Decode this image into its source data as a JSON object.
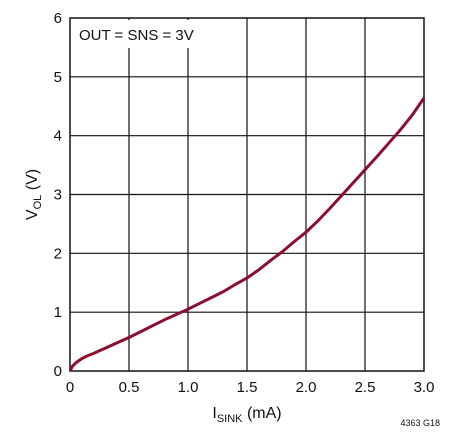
{
  "chart_data": {
    "type": "line",
    "title": "",
    "xlabel_main": "I",
    "xlabel_sub": "SINK",
    "xlabel_unit": " (mA)",
    "ylabel_main": "V",
    "ylabel_sub": "OL",
    "ylabel_unit": " (V)",
    "xlim": [
      0,
      3
    ],
    "ylim": [
      0,
      6
    ],
    "x_ticks": [
      "0",
      "0.5",
      "1.0",
      "1.5",
      "2.0",
      "2.5",
      "3.0"
    ],
    "y_ticks": [
      "0",
      "1",
      "2",
      "3",
      "4",
      "5",
      "6"
    ],
    "grid": true,
    "annotation": "OUT = SNS = 3V",
    "figure_id": "4363 G18",
    "line_color": "#8a0e2e",
    "series": [
      {
        "x": [
          0,
          0.02,
          0.05,
          0.1,
          0.15,
          0.2,
          0.3,
          0.4,
          0.5,
          0.6,
          0.7,
          0.8,
          0.9,
          1.0,
          1.1,
          1.2,
          1.3,
          1.4,
          1.5,
          1.6,
          1.7,
          1.8,
          1.9,
          2.0,
          2.1,
          2.2,
          2.3,
          2.4,
          2.5,
          2.6,
          2.7,
          2.8,
          2.9,
          3.0
        ],
        "y": [
          0,
          0.08,
          0.14,
          0.21,
          0.26,
          0.3,
          0.39,
          0.48,
          0.57,
          0.67,
          0.77,
          0.87,
          0.96,
          1.05,
          1.15,
          1.25,
          1.35,
          1.47,
          1.58,
          1.72,
          1.88,
          2.03,
          2.2,
          2.36,
          2.55,
          2.76,
          2.98,
          3.2,
          3.42,
          3.64,
          3.87,
          4.1,
          4.35,
          4.64
        ]
      }
    ]
  }
}
